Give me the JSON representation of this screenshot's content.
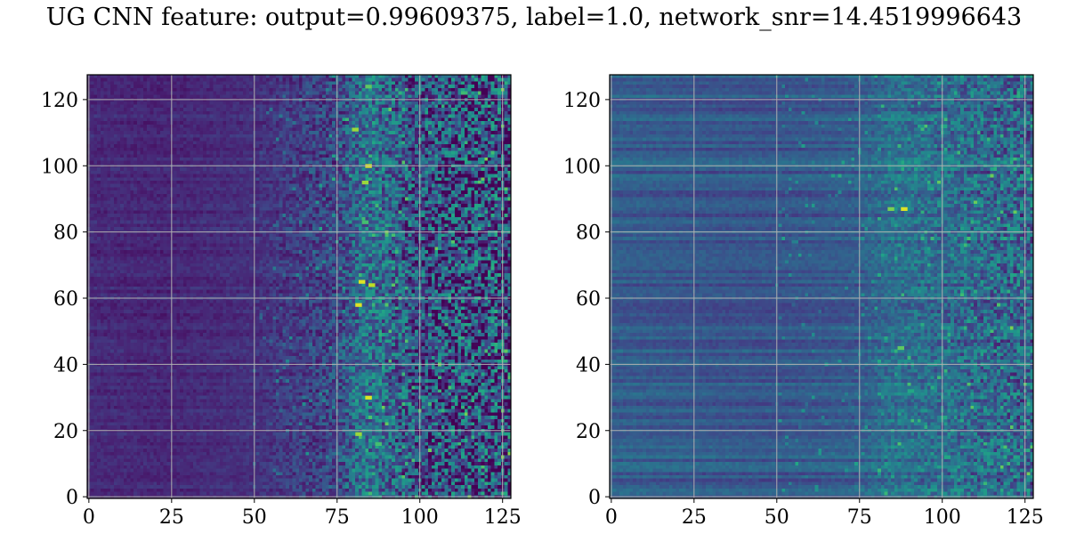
{
  "title": "UG CNN feature: output=0.99609375, label=1.0, network_snr=14.4519996643",
  "chart_data": [
    {
      "type": "heatmap",
      "colormap": "viridis",
      "rows": 128,
      "cols": 128,
      "xlim": [
        -0.5,
        127.5
      ],
      "ylim": [
        127.5,
        -0.5
      ],
      "xticks": [
        0,
        25,
        50,
        75,
        100,
        125
      ],
      "yticks": [
        0,
        20,
        40,
        60,
        80,
        100,
        120
      ],
      "grid": true,
      "value_range": [
        0,
        1
      ],
      "column_profile": [
        {
          "x": 0,
          "level": 0.12
        },
        {
          "x": 25,
          "level": 0.11
        },
        {
          "x": 50,
          "level": 0.14
        },
        {
          "x": 75,
          "level": 0.22
        },
        {
          "x": 84,
          "level": 0.38
        },
        {
          "x": 100,
          "level": 0.25
        },
        {
          "x": 127,
          "level": 0.2
        }
      ],
      "hotspots": [
        {
          "row": 3,
          "col": 84,
          "value": 0.75
        },
        {
          "row": 16,
          "col": 80,
          "value": 0.85
        },
        {
          "row": 27,
          "col": 84,
          "value": 0.95
        },
        {
          "row": 32,
          "col": 83,
          "value": 0.85
        },
        {
          "row": 44,
          "col": 83,
          "value": 0.7
        },
        {
          "row": 62,
          "col": 82,
          "value": 0.95
        },
        {
          "row": 63,
          "col": 85,
          "value": 0.9
        },
        {
          "row": 69,
          "col": 81,
          "value": 0.95
        },
        {
          "row": 97,
          "col": 84,
          "value": 0.95
        },
        {
          "row": 108,
          "col": 81,
          "value": 0.85
        },
        {
          "row": 111,
          "col": 87,
          "value": 0.7
        }
      ]
    },
    {
      "type": "heatmap",
      "colormap": "viridis",
      "rows": 128,
      "cols": 128,
      "xlim": [
        -0.5,
        127.5
      ],
      "ylim": [
        127.5,
        -0.5
      ],
      "xticks": [
        0,
        25,
        50,
        75,
        100,
        125
      ],
      "yticks": [
        0,
        20,
        40,
        60,
        80,
        100,
        120
      ],
      "grid": true,
      "value_range": [
        0,
        1
      ],
      "column_profile": [
        {
          "x": 0,
          "level": 0.3
        },
        {
          "x": 25,
          "level": 0.28
        },
        {
          "x": 50,
          "level": 0.27
        },
        {
          "x": 75,
          "level": 0.3
        },
        {
          "x": 85,
          "level": 0.38
        },
        {
          "x": 100,
          "level": 0.36
        },
        {
          "x": 127,
          "level": 0.33
        }
      ],
      "hotspots": [
        {
          "row": 40,
          "col": 84,
          "value": 0.8
        },
        {
          "row": 40,
          "col": 88,
          "value": 0.95
        },
        {
          "row": 15,
          "col": 100,
          "value": 0.6
        },
        {
          "row": 82,
          "col": 87,
          "value": 0.75
        },
        {
          "row": 95,
          "col": 90,
          "value": 0.6
        },
        {
          "row": 103,
          "col": 100,
          "value": 0.6
        },
        {
          "row": 115,
          "col": 101,
          "value": 0.6
        }
      ]
    }
  ]
}
